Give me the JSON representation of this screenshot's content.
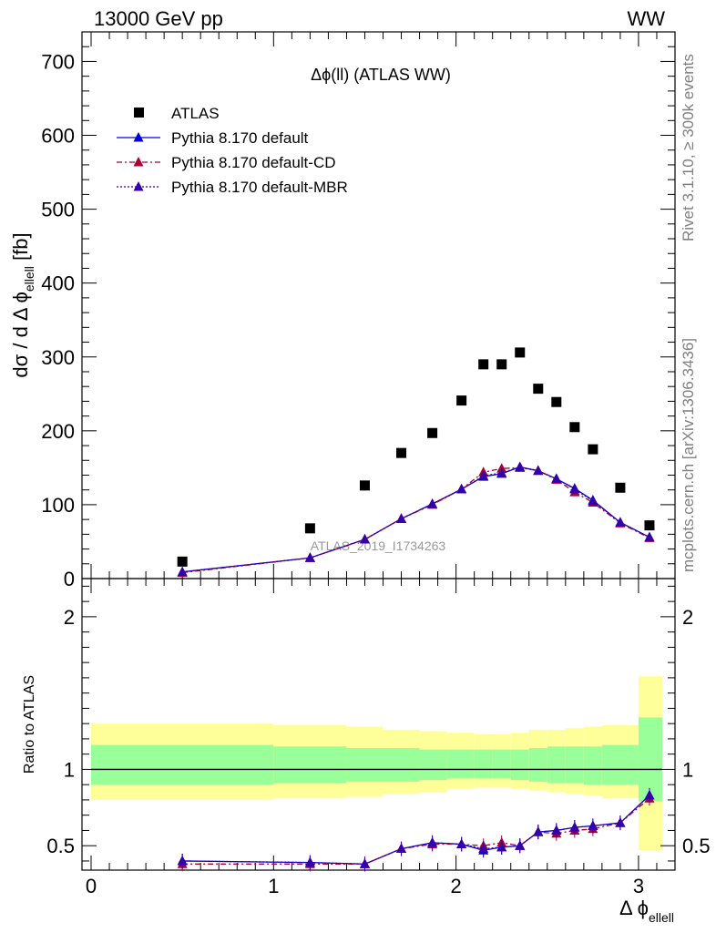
{
  "header": {
    "left": "13000 GeV pp",
    "right": "WW"
  },
  "side": {
    "rivet": "Rivet 3.1.10, ≥ 300k events",
    "mcplots": "mcplots.cern.ch [arXiv:1306.3436]"
  },
  "chart_data": [
    {
      "type": "scatter",
      "title": "Δϕ(ll) (ATLAS WW)",
      "watermark": "ATLAS_2019_I1734263",
      "ylabel": "dσ / d Δ ϕ",
      "ylabel_sub": "ellell",
      "ylabel_unit": "[fb]",
      "xlim": [
        -0.05,
        3.2
      ],
      "ylim": [
        0,
        740
      ],
      "xticks": [
        "0",
        "1",
        "2",
        "3"
      ],
      "yticks": [
        {
          "v": 0,
          "label": "0"
        },
        {
          "v": 100,
          "label": "100"
        },
        {
          "v": 200,
          "label": "200"
        },
        {
          "v": 300,
          "label": "300"
        },
        {
          "v": 400,
          "label": "400"
        },
        {
          "v": 500,
          "label": "500"
        },
        {
          "v": 600,
          "label": "600"
        },
        {
          "v": 700,
          "label": "700"
        }
      ],
      "legend_placement": "top-left",
      "series": [
        {
          "name": "ATLAS",
          "style": "marker-square",
          "color": "#000000",
          "x": [
            0.5,
            1.2,
            1.5,
            1.7,
            1.87,
            2.03,
            2.15,
            2.25,
            2.35,
            2.45,
            2.55,
            2.65,
            2.75,
            2.9,
            3.06
          ],
          "y": [
            23,
            68,
            126,
            170,
            197,
            241,
            290,
            290,
            306,
            257,
            239,
            205,
            175,
            123,
            72
          ]
        },
        {
          "name": "Pythia 8.170 default",
          "style": "solid",
          "color": "#0000dd",
          "x": [
            0.5,
            1.2,
            1.5,
            1.7,
            1.87,
            2.03,
            2.15,
            2.25,
            2.35,
            2.45,
            2.55,
            2.65,
            2.75,
            2.9,
            3.06
          ],
          "y": [
            9,
            28,
            53,
            81,
            101,
            121,
            138,
            142,
            151,
            146,
            135,
            122,
            106,
            76,
            56
          ]
        },
        {
          "name": "Pythia 8.170 default-CD",
          "style": "dashdot",
          "color": "#aa0033",
          "x": [
            0.5,
            1.2,
            1.5,
            1.7,
            1.87,
            2.03,
            2.15,
            2.25,
            2.35,
            2.45,
            2.55,
            2.65,
            2.75,
            2.9,
            3.06
          ],
          "y": [
            8,
            28,
            53,
            81,
            100,
            121,
            144,
            149,
            150,
            146,
            134,
            117,
            103,
            75,
            55
          ]
        },
        {
          "name": "Pythia 8.170 default-MBR",
          "style": "dotted",
          "color": "#3300aa",
          "x": [
            0.5,
            1.2,
            1.5,
            1.7,
            1.87,
            2.03,
            2.15,
            2.25,
            2.35,
            2.45,
            2.55,
            2.65,
            2.75,
            2.9,
            3.06
          ],
          "y": [
            9,
            28,
            53,
            81,
            101,
            121,
            139,
            143,
            151,
            146,
            135,
            121,
            105,
            76,
            56
          ]
        }
      ]
    },
    {
      "type": "line",
      "ylabel": "Ratio to ATLAS",
      "xlabel": "Δ ϕ",
      "xlabel_sub": "ellell",
      "xlim": [
        -0.05,
        3.2
      ],
      "ylim": [
        0.34,
        2.25
      ],
      "xticks": [
        "0",
        "1",
        "2",
        "3"
      ],
      "yticks": [
        {
          "v": 0.5,
          "label": "0.5"
        },
        {
          "v": 1,
          "label": "1"
        },
        {
          "v": 2,
          "label": "2"
        }
      ],
      "bands": {
        "bin_edges": [
          0,
          1,
          1.4,
          1.6,
          1.8,
          1.95,
          2.1,
          2.2,
          2.3,
          2.4,
          2.5,
          2.6,
          2.7,
          2.8,
          3.0,
          3.13
        ],
        "yellow": [
          [
            0.8,
            1.3
          ],
          [
            0.81,
            1.29
          ],
          [
            0.82,
            1.28
          ],
          [
            0.84,
            1.26
          ],
          [
            0.85,
            1.25
          ],
          [
            0.87,
            1.24
          ],
          [
            0.88,
            1.23
          ],
          [
            0.88,
            1.23
          ],
          [
            0.87,
            1.24
          ],
          [
            0.86,
            1.26
          ],
          [
            0.85,
            1.26
          ],
          [
            0.84,
            1.27
          ],
          [
            0.83,
            1.28
          ],
          [
            0.81,
            1.29
          ],
          [
            0.47,
            1.61
          ]
        ],
        "green": [
          [
            0.9,
            1.16
          ],
          [
            0.91,
            1.15
          ],
          [
            0.92,
            1.14
          ],
          [
            0.92,
            1.14
          ],
          [
            0.93,
            1.13
          ],
          [
            0.94,
            1.13
          ],
          [
            0.94,
            1.13
          ],
          [
            0.94,
            1.13
          ],
          [
            0.93,
            1.13
          ],
          [
            0.92,
            1.14
          ],
          [
            0.91,
            1.15
          ],
          [
            0.91,
            1.15
          ],
          [
            0.9,
            1.15
          ],
          [
            0.9,
            1.16
          ],
          [
            0.79,
            1.34
          ]
        ]
      },
      "series": [
        {
          "name": "Pythia 8.170 default",
          "style": "solid",
          "color": "#0000dd",
          "x": [
            0.5,
            1.2,
            1.5,
            1.7,
            1.87,
            2.03,
            2.15,
            2.25,
            2.35,
            2.45,
            2.55,
            2.65,
            2.75,
            2.9,
            3.06
          ],
          "y": [
            0.4,
            0.39,
            0.38,
            0.48,
            0.52,
            0.51,
            0.47,
            0.49,
            0.5,
            0.59,
            0.6,
            0.62,
            0.63,
            0.65,
            0.83
          ]
        },
        {
          "name": "Pythia 8.170 default-CD",
          "style": "dashdot",
          "color": "#aa0033",
          "x": [
            0.5,
            1.2,
            1.5,
            1.7,
            1.87,
            2.03,
            2.15,
            2.25,
            2.35,
            2.45,
            2.55,
            2.65,
            2.75,
            2.9,
            3.06
          ],
          "y": [
            0.38,
            0.38,
            0.38,
            0.48,
            0.51,
            0.51,
            0.5,
            0.52,
            0.5,
            0.59,
            0.58,
            0.6,
            0.61,
            0.65,
            0.81
          ]
        },
        {
          "name": "Pythia 8.170 default-MBR",
          "style": "dotted",
          "color": "#3300aa",
          "x": [
            0.5,
            1.2,
            1.5,
            1.7,
            1.87,
            2.03,
            2.15,
            2.25,
            2.35,
            2.45,
            2.55,
            2.65,
            2.75,
            2.9,
            3.06
          ],
          "y": [
            0.4,
            0.39,
            0.38,
            0.48,
            0.52,
            0.51,
            0.48,
            0.49,
            0.5,
            0.59,
            0.6,
            0.62,
            0.63,
            0.65,
            0.83
          ]
        }
      ]
    }
  ]
}
